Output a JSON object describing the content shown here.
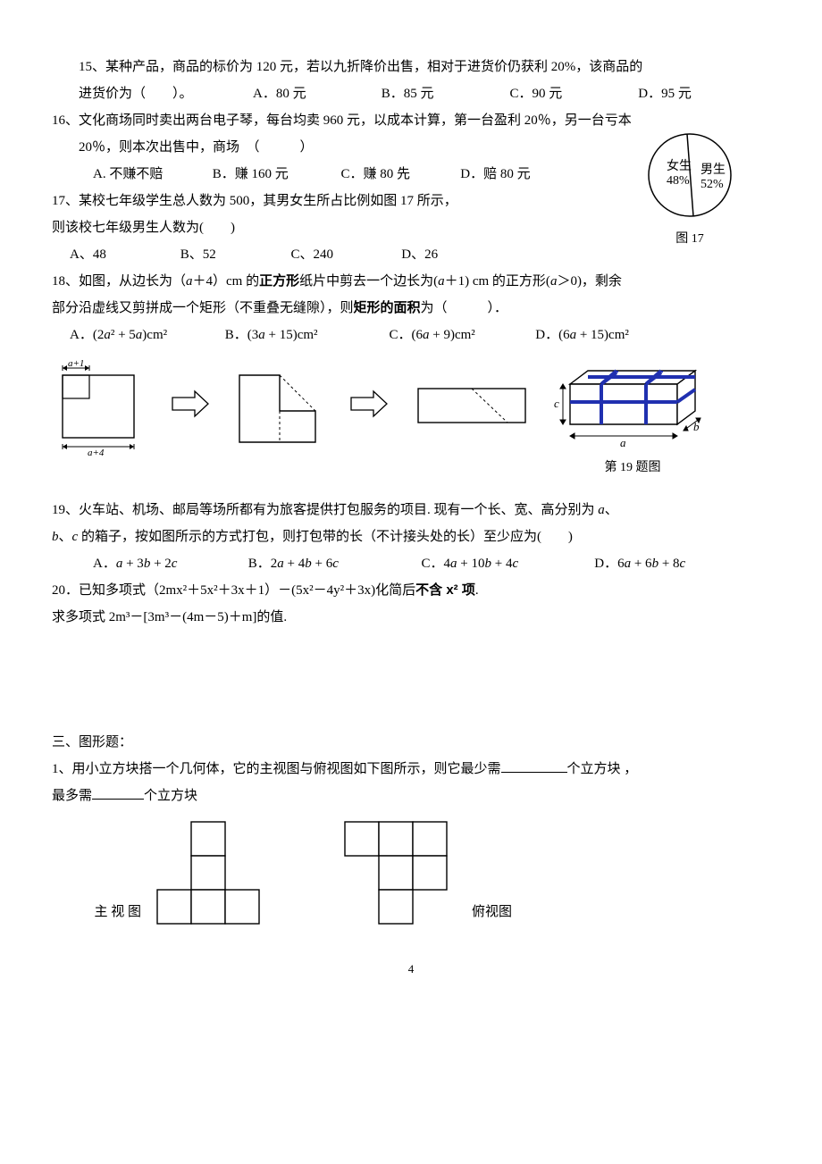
{
  "q15": {
    "text": "15、某种产品，商品的标价为 120 元，若以九折降价出售，相对于进货价仍获利 20%，该商品的",
    "text2": "进货价为（　　）。",
    "A": "A．80 元",
    "B": "B．85 元",
    "C": "C．90 元",
    "D": "D．95 元"
  },
  "q16": {
    "l1": "16、文化商场同时卖出两台电子琴，每台均卖 960 元，以成本计算，第一台盈利 20％，另一台亏本",
    "l2": "20％，则本次出售中，商场　（　　　）",
    "A": "A. 不赚不赔",
    "B": "B．赚 160 元",
    "C": "C．赚 80 先",
    "D": "D．赔 80 元"
  },
  "pie": {
    "left_label": "女生",
    "left_pct": "48%",
    "right_label": "男生",
    "right_pct": "52%",
    "caption": "图 17",
    "colors": {
      "stroke": "#000000",
      "fill": "#ffffff"
    }
  },
  "q17": {
    "l1": "17、某校七年级学生总人数为 500，其男女生所占比例如图 17 所示，",
    "l2": "则该校七年级男生人数为(　　)",
    "A": "A、48",
    "B": "B、52",
    "C": "C、240",
    "D": "D、26"
  },
  "q18": {
    "l1_a": "18、如图，从边长为（",
    "l1_i1": "a",
    "l1_b": "＋4）cm 的",
    "l1_bold1": "正方形",
    "l1_c": "纸片中剪去一个边长为(",
    "l1_i2": "a",
    "l1_d": "＋1) cm 的正方形(",
    "l1_i3": "a",
    "l1_e": "＞0)，剩余",
    "l2_a": "部分沿虚线又剪拼成一个矩形（不重叠无缝隙），则",
    "l2_bold": "矩形的面积",
    "l2_b": "为（　　　）．",
    "A": "A．(2a² + 5a)cm²",
    "B": "B．(3a + 15)cm²",
    "C": "C．(6a + 9)cm²",
    "D": "D．(6a + 15)cm²",
    "lbl_top": "a+1",
    "lbl_bot": "a+4"
  },
  "q19": {
    "cap": "第 19 题图",
    "l1_a": "19、火车站、机场、邮局等场所都有为旅客提供打包服务的项目. 现有一个长、宽、高分别为 ",
    "l1_i1": "a",
    "l1_b": "、",
    "l2_i1": "b",
    "l2_a": "、",
    "l2_i2": "c",
    "l2_b": " 的箱子，按如图所示的方式打包，则打包带的长（不计接头处的长）至少应为(　　)",
    "A": "A．a + 3b + 2c",
    "B": "B．2a + 4b + 6c",
    "C": "C．4a + 10b + 4c",
    "D": "D．6a + 6b + 8c",
    "box": {
      "a": "a",
      "b": "b",
      "c": "c",
      "band_color": "#2030b0",
      "fill": "#ffffff",
      "stroke": "#000000"
    }
  },
  "q20": {
    "l1_a": "20．已知多项式（2mx²＋5x²＋3x＋1）－(5x²－4y²＋3x)化简后",
    "l1_bold": "不含 x² 项",
    "l1_b": ".",
    "l2": "求多项式 2m³－[3m³－(4m－5)＋m]的值."
  },
  "sec3": {
    "title": "三、图形题：",
    "q1_a": "1、用小立方块搭一个几何体，它的主视图与俯视图如下图所示，则它最少需",
    "q1_b": "个立方块 ，",
    "q1_c": "最多需",
    "q1_d": "个立方块",
    "cap_left": "主 视 图",
    "cap_right": "俯视图",
    "cell": 38,
    "front_view": [
      [
        0,
        1,
        0
      ],
      [
        0,
        1,
        0
      ],
      [
        1,
        1,
        1
      ]
    ],
    "top_view": [
      [
        1,
        1,
        1
      ],
      [
        0,
        1,
        1
      ],
      [
        0,
        1,
        0
      ]
    ]
  },
  "page": "4"
}
